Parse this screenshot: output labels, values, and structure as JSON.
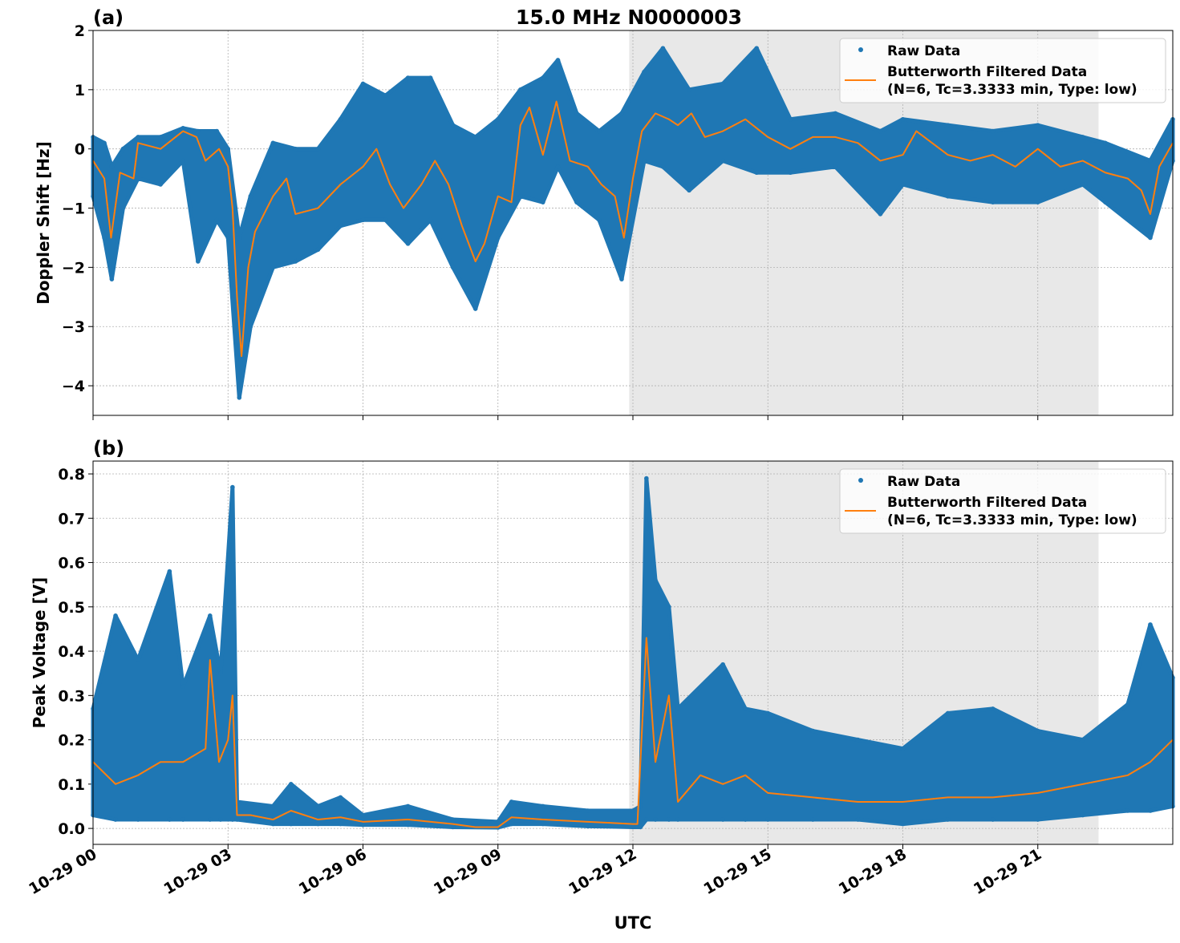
{
  "title": "15.0 MHz N0000003",
  "xlabel": "UTC",
  "x_ticks": [
    "10-29 00",
    "10-29 03",
    "10-29 06",
    "10-29 09",
    "10-29 12",
    "10-29 15",
    "10-29 18",
    "10-29 21"
  ],
  "legend": {
    "raw": "Raw Data",
    "filtered_line1": "Butterworth Filtered Data",
    "filtered_line2": "(N=6, Tc=3.3333 min, Type: low)"
  },
  "colors": {
    "raw": "#1f77b4",
    "filtered": "#ff7f0e",
    "shade": "#e8e8e8"
  },
  "chart_data": [
    {
      "type": "scatter+line",
      "panel_label": "(a)",
      "ylabel": "Doppler Shift [Hz]",
      "xlim": [
        "10-29 00:00",
        "10-29 23:59"
      ],
      "ylim": [
        -4.5,
        2
      ],
      "y_ticks": [
        "2",
        "1",
        "0",
        "−1",
        "−2",
        "−3",
        "−4"
      ],
      "y_tick_values": [
        2,
        1,
        0,
        -1,
        -2,
        -3,
        -4
      ],
      "grid": true,
      "legend_position": "top-right",
      "shaded_interval": [
        "10-29 11:55",
        "10-29 22:21"
      ],
      "series": [
        {
          "name": "Raw Data",
          "kind": "raw_envelope",
          "x": [
            "10-29 00:00",
            "10-29 00:15",
            "10-29 00:25",
            "10-29 00:40",
            "10-29 01:00",
            "10-29 01:30",
            "10-29 02:00",
            "10-29 02:20",
            "10-29 02:45",
            "10-29 03:00",
            "10-29 03:15",
            "10-29 03:30",
            "10-29 04:00",
            "10-29 04:30",
            "10-29 05:00",
            "10-29 05:30",
            "10-29 06:00",
            "10-29 06:30",
            "10-29 07:00",
            "10-29 07:30",
            "10-29 08:00",
            "10-29 08:30",
            "10-29 09:00",
            "10-29 09:30",
            "10-29 10:00",
            "10-29 10:20",
            "10-29 10:45",
            "10-29 11:15",
            "10-29 11:45",
            "10-29 12:15",
            "10-29 12:40",
            "10-29 13:15",
            "10-29 14:00",
            "10-29 14:45",
            "10-29 15:30",
            "10-29 16:30",
            "10-29 17:30",
            "10-29 18:00",
            "10-29 19:00",
            "10-29 20:00",
            "10-29 21:00",
            "10-29 22:00",
            "10-29 22:30",
            "10-29 23:30",
            "10-29 23:59"
          ],
          "min": [
            -0.8,
            -1.5,
            -2.2,
            -1.0,
            -0.5,
            -0.6,
            -0.2,
            -1.9,
            -1.2,
            -1.5,
            -4.2,
            -3.0,
            -2.0,
            -1.9,
            -1.7,
            -1.3,
            -1.2,
            -1.2,
            -1.6,
            -1.2,
            -2.0,
            -2.7,
            -1.5,
            -0.8,
            -0.9,
            -0.3,
            -0.9,
            -1.2,
            -2.2,
            -0.2,
            -0.3,
            -0.7,
            -0.2,
            -0.4,
            -0.4,
            -0.3,
            -1.1,
            -0.6,
            -0.8,
            -0.9,
            -0.9,
            -0.6,
            -0.9,
            -1.5,
            -0.2
          ],
          "max": [
            0.2,
            0.1,
            -0.3,
            0.0,
            0.2,
            0.2,
            0.35,
            0.3,
            0.3,
            0.0,
            -1.5,
            -0.8,
            0.1,
            0.0,
            0.0,
            0.5,
            1.1,
            0.9,
            1.2,
            1.2,
            0.4,
            0.2,
            0.5,
            1.0,
            1.2,
            1.5,
            0.6,
            0.3,
            0.6,
            1.3,
            1.7,
            1.0,
            1.1,
            1.7,
            0.5,
            0.6,
            0.3,
            0.5,
            0.4,
            0.3,
            0.4,
            0.2,
            0.1,
            -0.2,
            0.5
          ]
        },
        {
          "name": "Butterworth Filtered Data",
          "kind": "line",
          "x": [
            "10-29 00:00",
            "10-29 00:15",
            "10-29 00:24",
            "10-29 00:36",
            "10-29 00:54",
            "10-29 01:00",
            "10-29 01:30",
            "10-29 02:00",
            "10-29 02:18",
            "10-29 02:30",
            "10-29 02:48",
            "10-29 03:00",
            "10-29 03:06",
            "10-29 03:12",
            "10-29 03:18",
            "10-29 03:27",
            "10-29 03:36",
            "10-29 04:00",
            "10-29 04:18",
            "10-29 04:30",
            "10-29 05:00",
            "10-29 05:30",
            "10-29 06:00",
            "10-29 06:18",
            "10-29 06:36",
            "10-29 06:54",
            "10-29 07:18",
            "10-29 07:36",
            "10-29 07:54",
            "10-29 08:12",
            "10-29 08:30",
            "10-29 08:42",
            "10-29 09:00",
            "10-29 09:18",
            "10-29 09:30",
            "10-29 09:42",
            "10-29 10:00",
            "10-29 10:18",
            "10-29 10:36",
            "10-29 11:00",
            "10-29 11:18",
            "10-29 11:36",
            "10-29 11:48",
            "10-29 12:00",
            "10-29 12:12",
            "10-29 12:30",
            "10-29 12:48",
            "10-29 13:00",
            "10-29 13:18",
            "10-29 13:36",
            "10-29 14:00",
            "10-29 14:30",
            "10-29 15:00",
            "10-29 15:30",
            "10-29 16:00",
            "10-29 16:30",
            "10-29 17:00",
            "10-29 17:30",
            "10-29 18:00",
            "10-29 18:18",
            "10-29 19:00",
            "10-29 19:30",
            "10-29 20:00",
            "10-29 20:30",
            "10-29 21:00",
            "10-29 21:30",
            "10-29 22:00",
            "10-29 22:30",
            "10-29 23:00",
            "10-29 23:18",
            "10-29 23:30",
            "10-29 23:42",
            "10-29 23:59"
          ],
          "y": [
            -0.2,
            -0.5,
            -1.5,
            -0.4,
            -0.5,
            0.1,
            0.0,
            0.3,
            0.2,
            -0.2,
            0.0,
            -0.3,
            -1.0,
            -2.5,
            -3.5,
            -2.0,
            -1.4,
            -0.8,
            -0.5,
            -1.1,
            -1.0,
            -0.6,
            -0.3,
            0.0,
            -0.6,
            -1.0,
            -0.6,
            -0.2,
            -0.6,
            -1.3,
            -1.9,
            -1.6,
            -0.8,
            -0.9,
            0.4,
            0.7,
            -0.1,
            0.8,
            -0.2,
            -0.3,
            -0.6,
            -0.8,
            -1.5,
            -0.5,
            0.3,
            0.6,
            0.5,
            0.4,
            0.6,
            0.2,
            0.3,
            0.5,
            0.2,
            0.0,
            0.2,
            0.2,
            0.1,
            -0.2,
            -0.1,
            0.3,
            -0.1,
            -0.2,
            -0.1,
            -0.3,
            0.0,
            -0.3,
            -0.2,
            -0.4,
            -0.5,
            -0.7,
            -1.1,
            -0.3,
            0.1
          ]
        }
      ]
    },
    {
      "type": "scatter+line",
      "panel_label": "(b)",
      "ylabel": "Peak Voltage [V]",
      "xlim": [
        "10-29 00:00",
        "10-29 23:59"
      ],
      "ylim": [
        -0.036,
        0.829
      ],
      "y_ticks": [
        "0.8",
        "0.7",
        "0.6",
        "0.5",
        "0.4",
        "0.3",
        "0.2",
        "0.1",
        "0.0"
      ],
      "y_tick_values": [
        0.8,
        0.7,
        0.6,
        0.5,
        0.4,
        0.3,
        0.2,
        0.1,
        0.0
      ],
      "grid": true,
      "legend_position": "top-right",
      "shaded_interval": [
        "10-29 11:55",
        "10-29 22:21"
      ],
      "series": [
        {
          "name": "Raw Data",
          "kind": "raw_envelope",
          "x": [
            "10-29 00:00",
            "10-29 00:30",
            "10-29 01:00",
            "10-29 01:42",
            "10-29 02:00",
            "10-29 02:36",
            "10-29 02:50",
            "10-29 03:06",
            "10-29 03:12",
            "10-29 04:00",
            "10-29 04:24",
            "10-29 05:00",
            "10-29 05:30",
            "10-29 06:00",
            "10-29 07:00",
            "10-29 08:00",
            "10-29 09:00",
            "10-29 09:18",
            "10-29 10:00",
            "10-29 11:00",
            "10-29 12:00",
            "10-29 12:10",
            "10-29 12:18",
            "10-29 12:30",
            "10-29 12:48",
            "10-29 13:00",
            "10-29 14:00",
            "10-29 14:30",
            "10-29 15:00",
            "10-29 16:00",
            "10-29 17:00",
            "10-29 18:00",
            "10-29 19:00",
            "10-29 20:00",
            "10-29 21:00",
            "10-29 22:00",
            "10-29 23:00",
            "10-29 23:30",
            "10-29 23:59"
          ],
          "min": [
            0.03,
            0.02,
            0.02,
            0.02,
            0.02,
            0.02,
            0.02,
            0.02,
            0.02,
            0.01,
            0.01,
            0.01,
            0.01,
            0.008,
            0.008,
            0.003,
            0.002,
            0.01,
            0.01,
            0.005,
            0.003,
            0.003,
            0.02,
            0.02,
            0.02,
            0.02,
            0.02,
            0.02,
            0.02,
            0.02,
            0.02,
            0.01,
            0.02,
            0.02,
            0.02,
            0.03,
            0.04,
            0.04,
            0.05
          ],
          "max": [
            0.27,
            0.48,
            0.38,
            0.58,
            0.32,
            0.48,
            0.35,
            0.77,
            0.06,
            0.05,
            0.1,
            0.05,
            0.07,
            0.03,
            0.05,
            0.02,
            0.015,
            0.06,
            0.05,
            0.04,
            0.04,
            0.05,
            0.79,
            0.56,
            0.5,
            0.27,
            0.37,
            0.27,
            0.26,
            0.22,
            0.2,
            0.18,
            0.26,
            0.27,
            0.22,
            0.2,
            0.28,
            0.46,
            0.34
          ]
        },
        {
          "name": "Butterworth Filtered Data",
          "kind": "line",
          "x": [
            "10-29 00:00",
            "10-29 00:30",
            "10-29 01:00",
            "10-29 01:30",
            "10-29 02:00",
            "10-29 02:30",
            "10-29 02:36",
            "10-29 02:48",
            "10-29 03:00",
            "10-29 03:06",
            "10-29 03:12",
            "10-29 03:30",
            "10-29 04:00",
            "10-29 04:24",
            "10-29 05:00",
            "10-29 05:30",
            "10-29 06:00",
            "10-29 07:00",
            "10-29 08:00",
            "10-29 08:30",
            "10-29 09:00",
            "10-29 09:18",
            "10-29 10:00",
            "10-29 11:00",
            "10-29 12:00",
            "10-29 12:06",
            "10-29 12:18",
            "10-29 12:30",
            "10-29 12:48",
            "10-29 13:00",
            "10-29 13:30",
            "10-29 14:00",
            "10-29 14:30",
            "10-29 15:00",
            "10-29 16:00",
            "10-29 17:00",
            "10-29 18:00",
            "10-29 19:00",
            "10-29 20:00",
            "10-29 21:00",
            "10-29 22:00",
            "10-29 23:00",
            "10-29 23:30",
            "10-29 23:59"
          ],
          "y": [
            0.15,
            0.1,
            0.12,
            0.15,
            0.15,
            0.18,
            0.38,
            0.15,
            0.2,
            0.3,
            0.03,
            0.03,
            0.02,
            0.04,
            0.02,
            0.025,
            0.015,
            0.02,
            0.01,
            0.003,
            0.003,
            0.025,
            0.02,
            0.015,
            0.01,
            0.01,
            0.43,
            0.15,
            0.3,
            0.06,
            0.12,
            0.1,
            0.12,
            0.08,
            0.07,
            0.06,
            0.06,
            0.07,
            0.07,
            0.08,
            0.1,
            0.12,
            0.15,
            0.2
          ]
        }
      ]
    }
  ]
}
